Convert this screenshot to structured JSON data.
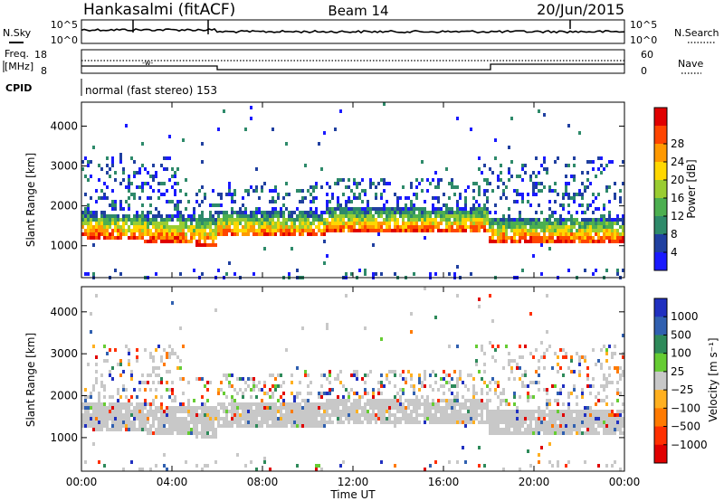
{
  "header": {
    "station": "Hankasalmi (fitACF)",
    "beam": "Beam 14",
    "date": "20/Jun/2015"
  },
  "noise_panel": {
    "left_label": "N.Sky",
    "right_label": "N.Search",
    "left_ticks": [
      "10^5",
      "10^0"
    ],
    "right_ticks": [
      "10^5",
      "10^0"
    ]
  },
  "freq_panel": {
    "left_label_line1": "Freq.",
    "left_label_line2": "[MHz]",
    "right_label": "Nave",
    "left_ticks": [
      "18",
      "8"
    ],
    "right_ticks": [
      "60",
      "0"
    ]
  },
  "cpid": {
    "label": "CPID",
    "text": "normal (fast stereo) 153"
  },
  "chart_data": [
    {
      "type": "heatmap",
      "name": "power",
      "ylabel": "Slant Range [km]",
      "y_ticks": [
        "1000",
        "2000",
        "3000",
        "4000"
      ],
      "ylim": [
        200,
        4600
      ],
      "colorbar_label": "Power [dB]",
      "colorbar_ticks": [
        "4",
        "8",
        "12",
        "16",
        "20",
        "24",
        "28"
      ],
      "colorbar_colors": [
        "#1a1aff",
        "#2040a0",
        "#2e8a6a",
        "#4caf50",
        "#9acd32",
        "#ffd700",
        "#ff9900",
        "#ff4500",
        "#e00000"
      ]
    },
    {
      "type": "heatmap",
      "name": "velocity",
      "ylabel": "Slant Range [km]",
      "y_ticks": [
        "1000",
        "2000",
        "3000",
        "4000"
      ],
      "ylim": [
        200,
        4600
      ],
      "colorbar_label": "Velocity [m s⁻¹]",
      "colorbar_ticks": [
        "1000",
        "500",
        "100",
        "25",
        "−25",
        "−100",
        "−500",
        "−1000"
      ],
      "colorbar_colors": [
        "#2030c0",
        "#3060b0",
        "#2e8a5a",
        "#66cc33",
        "#c8c8c8",
        "#ffb020",
        "#ff7a00",
        "#ff3000",
        "#e00000"
      ]
    }
  ],
  "x_axis": {
    "ticks": [
      "00:00",
      "04:00",
      "08:00",
      "12:00",
      "16:00",
      "20:00",
      "00:00"
    ],
    "label": "Time UT"
  }
}
